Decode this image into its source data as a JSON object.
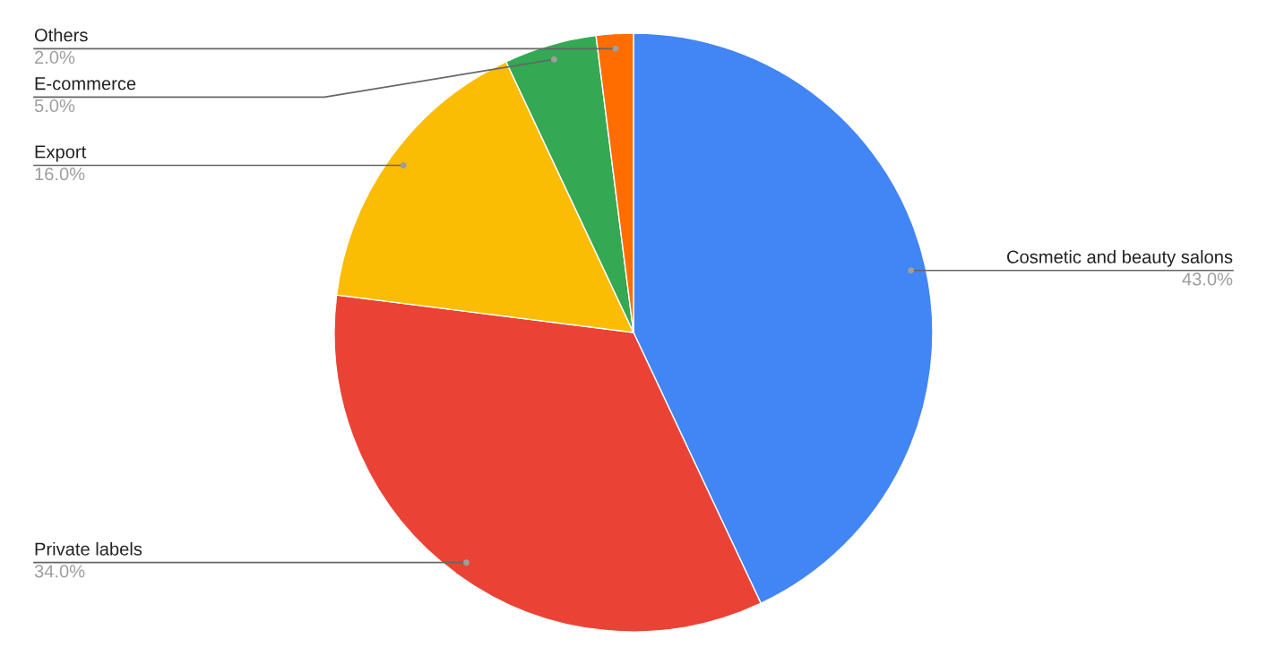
{
  "chart_data": {
    "type": "pie",
    "categories": [
      "Cosmetic and beauty salons",
      "Private labels",
      "Export",
      "E-commerce",
      "Others"
    ],
    "values": [
      43,
      34,
      16,
      5,
      2
    ],
    "colors": [
      "#4285f4",
      "#ea4335",
      "#fbbc04",
      "#34a853",
      "#ff6d01"
    ],
    "value_labels": [
      "43.0%",
      "34.0%",
      "16.0%",
      "5.0%",
      "2.0%"
    ]
  }
}
